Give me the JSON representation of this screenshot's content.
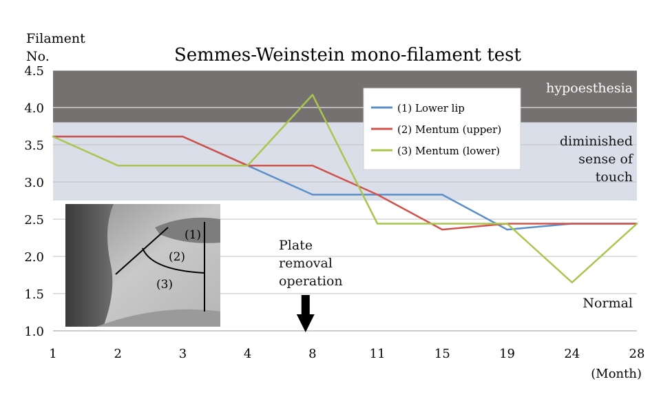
{
  "chart_data": {
    "type": "line",
    "title": "Semmes-Weinstein mono-filament test",
    "ylabel": [
      "Filament",
      "No."
    ],
    "xlabel": "(Month)",
    "categories": [
      "1",
      "2",
      "3",
      "4",
      "8",
      "11",
      "15",
      "19",
      "24",
      "28"
    ],
    "yticks": [
      "1.0",
      "1.5",
      "2.0",
      "2.5",
      "3.0",
      "3.5",
      "4.0",
      "4.5"
    ],
    "ylim": [
      1.0,
      4.5
    ],
    "grid": true,
    "legend_position": "top-right",
    "series": [
      {
        "name": "(1) Lower lip",
        "color": "#5b8fc7",
        "values": [
          3.61,
          3.61,
          3.61,
          3.22,
          2.83,
          2.83,
          2.83,
          2.36,
          2.44,
          2.44
        ]
      },
      {
        "name": "(2) Mentum (upper)",
        "color": "#d2524b",
        "values": [
          3.61,
          3.61,
          3.61,
          3.22,
          3.22,
          2.83,
          2.36,
          2.44,
          2.44,
          2.44
        ]
      },
      {
        "name": "(3) Mentum (lower)",
        "color": "#a8c64e",
        "values": [
          3.61,
          3.22,
          3.22,
          3.22,
          4.17,
          2.44,
          2.44,
          2.44,
          1.65,
          2.44
        ]
      }
    ],
    "zones": [
      {
        "label": "hypoesthesia",
        "from": 3.8,
        "to": 4.5,
        "color": "#767171",
        "text_color": "#ffffff"
      },
      {
        "label": "diminished\nsense of\ntouch",
        "from": 2.75,
        "to": 3.8,
        "color": "#d9dee9",
        "text_color": "#111111"
      },
      {
        "label": "Normal",
        "from": 1.0,
        "to": 2.75,
        "color": "#ffffff",
        "text_color": "#111111"
      }
    ],
    "annotation": {
      "text": "Plate\nremoval\noperation",
      "between": [
        "4",
        "8"
      ]
    },
    "photo_labels": [
      "(1)",
      "(2)",
      "(3)"
    ]
  }
}
